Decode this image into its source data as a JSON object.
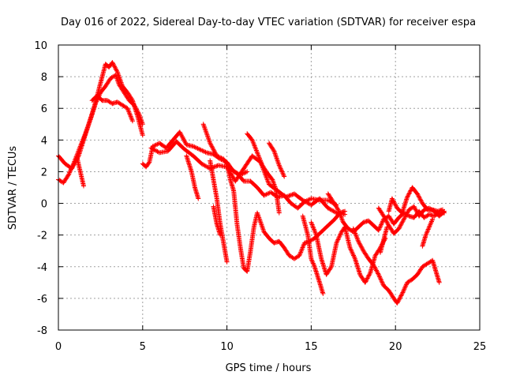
{
  "chart_data": {
    "type": "scatter",
    "title": "Day 016 of 2022, Sidereal Day-to-day VTEC variation (SDTVAR) for receiver espa",
    "xlabel": "GPS time / hours",
    "ylabel": "SDTVAR / TECUs",
    "xlim": [
      0,
      25
    ],
    "ylim": [
      -8,
      10
    ],
    "xticks": [
      0,
      5,
      10,
      15,
      20,
      25
    ],
    "yticks": [
      -8,
      -6,
      -4,
      -2,
      0,
      2,
      4,
      6,
      8,
      10
    ],
    "grid": true,
    "marker": "+",
    "series": [
      {
        "name": "SDTVAR",
        "color": "#ff0000",
        "traces": [
          [
            [
              0,
              3.0
            ],
            [
              0.4,
              2.5
            ],
            [
              0.8,
              2.2
            ],
            [
              1.2,
              3.0
            ],
            [
              1.5,
              4.0
            ],
            [
              1.8,
              5.0
            ],
            [
              2.1,
              6.0
            ],
            [
              2.4,
              7.2
            ],
            [
              2.6,
              8.0
            ],
            [
              2.8,
              8.8
            ],
            [
              3.0,
              8.6
            ],
            [
              3.2,
              8.9
            ],
            [
              3.5,
              8.3
            ],
            [
              3.8,
              7.4
            ],
            [
              4.1,
              7.0
            ],
            [
              4.4,
              6.5
            ],
            [
              4.7,
              5.5
            ],
            [
              5.0,
              4.3
            ]
          ],
          [
            [
              0,
              1.5
            ],
            [
              0.3,
              1.3
            ],
            [
              0.6,
              1.8
            ],
            [
              0.9,
              2.5
            ],
            [
              1.3,
              3.6
            ],
            [
              1.6,
              4.4
            ],
            [
              1.9,
              5.3
            ],
            [
              2.2,
              6.3
            ],
            [
              2.5,
              7.0
            ],
            [
              2.8,
              7.4
            ],
            [
              3.1,
              7.9
            ],
            [
              3.4,
              8.1
            ],
            [
              3.6,
              7.5
            ],
            [
              3.9,
              7.0
            ],
            [
              4.2,
              6.5
            ],
            [
              4.5,
              6.2
            ],
            [
              4.8,
              5.6
            ],
            [
              5.0,
              5.0
            ]
          ],
          [
            [
              1.1,
              2.9
            ],
            [
              1.3,
              2.0
            ],
            [
              1.5,
              1.1
            ]
          ],
          [
            [
              2.0,
              6.5
            ],
            [
              2.3,
              6.8
            ],
            [
              2.6,
              6.5
            ],
            [
              2.9,
              6.5
            ],
            [
              3.2,
              6.3
            ],
            [
              3.5,
              6.4
            ],
            [
              3.8,
              6.2
            ],
            [
              4.1,
              6.0
            ],
            [
              4.4,
              5.2
            ]
          ],
          [
            [
              5.0,
              2.5
            ],
            [
              5.2,
              2.3
            ],
            [
              5.4,
              2.6
            ],
            [
              5.6,
              3.6
            ],
            [
              6.0,
              3.8
            ],
            [
              6.4,
              3.5
            ],
            [
              6.8,
              4.0
            ],
            [
              7.2,
              4.5
            ],
            [
              7.6,
              3.7
            ],
            [
              8.0,
              3.6
            ],
            [
              8.4,
              3.4
            ],
            [
              8.8,
              3.2
            ],
            [
              9.2,
              3.1
            ],
            [
              9.6,
              2.8
            ],
            [
              10.0,
              2.6
            ],
            [
              10.4,
              2.0
            ],
            [
              10.8,
              1.8
            ],
            [
              11.2,
              2.0
            ]
          ],
          [
            [
              5.5,
              3.5
            ],
            [
              6.0,
              3.2
            ],
            [
              6.5,
              3.3
            ],
            [
              7.0,
              3.9
            ],
            [
              7.5,
              3.4
            ],
            [
              8.0,
              3.0
            ],
            [
              8.5,
              2.5
            ],
            [
              9.0,
              2.2
            ],
            [
              9.5,
              2.4
            ],
            [
              10.0,
              2.3
            ],
            [
              10.5,
              1.4
            ],
            [
              11.0,
              2.2
            ],
            [
              11.5,
              3.0
            ],
            [
              12.0,
              2.6
            ],
            [
              12.5,
              1.2
            ],
            [
              13.0,
              0.8
            ],
            [
              13.5,
              0.4
            ],
            [
              14.0,
              0.6
            ],
            [
              14.5,
              0.2
            ],
            [
              15.0,
              -0.1
            ],
            [
              15.5,
              0.3
            ],
            [
              16.0,
              -0.3
            ],
            [
              16.5,
              -0.6
            ],
            [
              17.0,
              -0.7
            ]
          ],
          [
            [
              7.6,
              3.0
            ],
            [
              7.9,
              2.0
            ],
            [
              8.1,
              1.0
            ],
            [
              8.3,
              0.3
            ]
          ],
          [
            [
              8.6,
              5.0
            ],
            [
              9.0,
              3.8
            ],
            [
              9.4,
              3.0
            ],
            [
              9.8,
              2.8
            ],
            [
              10.2,
              2.2
            ],
            [
              10.6,
              1.9
            ],
            [
              11.0,
              1.4
            ],
            [
              11.4,
              1.4
            ],
            [
              11.8,
              1.0
            ],
            [
              12.2,
              0.5
            ],
            [
              12.6,
              0.7
            ],
            [
              13.0,
              0.4
            ],
            [
              13.4,
              0.5
            ],
            [
              13.8,
              0.0
            ],
            [
              14.2,
              -0.3
            ],
            [
              14.6,
              0.1
            ],
            [
              15.0,
              0.3
            ],
            [
              15.5,
              0.2
            ],
            [
              16.0,
              0.2
            ],
            [
              16.5,
              -0.1
            ]
          ],
          [
            [
              9.0,
              2.7
            ],
            [
              9.2,
              1.5
            ],
            [
              9.4,
              0.3
            ],
            [
              9.6,
              -1.3
            ],
            [
              9.8,
              -2.5
            ],
            [
              10.0,
              -3.7
            ]
          ],
          [
            [
              9.2,
              -0.2
            ],
            [
              9.4,
              -1.3
            ],
            [
              9.6,
              -2.0
            ]
          ],
          [
            [
              10.0,
              2.5
            ],
            [
              10.2,
              1.5
            ],
            [
              10.4,
              0.8
            ],
            [
              10.6,
              -1.3
            ],
            [
              10.8,
              -2.8
            ],
            [
              11.0,
              -4.1
            ],
            [
              11.2,
              -4.3
            ],
            [
              11.4,
              -3.0
            ],
            [
              11.6,
              -1.5
            ],
            [
              11.8,
              -0.6
            ],
            [
              12.0,
              -1.2
            ],
            [
              12.2,
              -1.8
            ],
            [
              12.5,
              -2.2
            ],
            [
              12.8,
              -2.5
            ],
            [
              13.1,
              -2.4
            ],
            [
              13.4,
              -2.8
            ],
            [
              13.7,
              -3.3
            ],
            [
              14.0,
              -3.5
            ],
            [
              14.3,
              -3.3
            ],
            [
              14.6,
              -2.5
            ],
            [
              14.9,
              -2.4
            ],
            [
              15.2,
              -2.2
            ],
            [
              15.5,
              -1.9
            ],
            [
              15.8,
              -1.6
            ],
            [
              16.1,
              -1.3
            ],
            [
              16.4,
              -1.0
            ],
            [
              16.7,
              -0.6
            ],
            [
              17.0,
              -0.5
            ]
          ],
          [
            [
              11.2,
              4.4
            ],
            [
              11.5,
              4.0
            ],
            [
              11.8,
              3.2
            ],
            [
              12.1,
              2.4
            ],
            [
              12.4,
              1.9
            ],
            [
              12.7,
              1.5
            ],
            [
              12.9,
              0.9
            ],
            [
              13.1,
              -0.6
            ]
          ],
          [
            [
              12.5,
              3.8
            ],
            [
              12.8,
              3.3
            ],
            [
              13.1,
              2.4
            ],
            [
              13.4,
              1.7
            ]
          ],
          [
            [
              14.5,
              -0.8
            ],
            [
              14.8,
              -2.0
            ],
            [
              15.0,
              -3.5
            ],
            [
              15.2,
              -4.0
            ],
            [
              15.5,
              -5.0
            ],
            [
              15.7,
              -5.7
            ]
          ],
          [
            [
              15.0,
              -1.2
            ],
            [
              15.3,
              -2.0
            ],
            [
              15.6,
              -3.5
            ],
            [
              15.9,
              -4.5
            ],
            [
              16.2,
              -4.0
            ],
            [
              16.5,
              -2.5
            ],
            [
              16.8,
              -1.8
            ],
            [
              17.0,
              -1.5
            ],
            [
              17.3,
              -2.8
            ],
            [
              17.6,
              -3.5
            ],
            [
              17.9,
              -4.5
            ],
            [
              18.2,
              -5.0
            ],
            [
              18.5,
              -4.4
            ],
            [
              18.8,
              -3.3
            ],
            [
              19.1,
              -2.8
            ],
            [
              19.4,
              -2.2
            ]
          ],
          [
            [
              16.0,
              0.6
            ],
            [
              16.3,
              0.1
            ],
            [
              16.6,
              -0.4
            ],
            [
              16.9,
              -1.2
            ],
            [
              17.2,
              -1.6
            ],
            [
              17.5,
              -1.8
            ],
            [
              17.8,
              -1.5
            ],
            [
              18.1,
              -1.2
            ],
            [
              18.4,
              -1.1
            ],
            [
              18.7,
              -1.4
            ],
            [
              19.0,
              -1.7
            ],
            [
              19.3,
              -1.0
            ],
            [
              19.6,
              -0.8
            ],
            [
              19.9,
              -1.3
            ],
            [
              20.2,
              -0.9
            ],
            [
              20.5,
              -0.6
            ],
            [
              20.8,
              -0.8
            ],
            [
              21.1,
              -0.9
            ],
            [
              21.4,
              -0.5
            ],
            [
              21.7,
              -0.9
            ],
            [
              22.0,
              -0.7
            ],
            [
              22.3,
              -0.8
            ],
            [
              22.6,
              -0.6
            ],
            [
              22.9,
              -0.6
            ]
          ],
          [
            [
              17.5,
              -1.6
            ],
            [
              17.8,
              -2.4
            ],
            [
              18.1,
              -3.0
            ],
            [
              18.4,
              -3.5
            ],
            [
              18.7,
              -3.9
            ],
            [
              19.0,
              -4.5
            ],
            [
              19.3,
              -5.2
            ],
            [
              19.6,
              -5.5
            ],
            [
              19.9,
              -6.0
            ],
            [
              20.1,
              -6.3
            ],
            [
              20.4,
              -5.7
            ],
            [
              20.7,
              -5.0
            ],
            [
              21.0,
              -4.8
            ],
            [
              21.3,
              -4.5
            ],
            [
              21.6,
              -4.0
            ],
            [
              21.9,
              -3.8
            ],
            [
              22.2,
              -3.6
            ],
            [
              22.4,
              -4.3
            ],
            [
              22.6,
              -5.0
            ]
          ],
          [
            [
              19.6,
              -0.5
            ],
            [
              19.8,
              0.3
            ],
            [
              20.1,
              -0.3
            ],
            [
              20.4,
              -0.6
            ],
            [
              20.7,
              0.4
            ],
            [
              21.0,
              1.0
            ],
            [
              21.3,
              0.6
            ],
            [
              21.6,
              0.0
            ],
            [
              21.9,
              -0.4
            ],
            [
              22.2,
              -0.4
            ],
            [
              22.5,
              -0.5
            ],
            [
              22.8,
              -0.4
            ]
          ],
          [
            [
              19.0,
              -0.3
            ],
            [
              19.3,
              -0.8
            ],
            [
              19.6,
              -1.4
            ],
            [
              19.9,
              -1.9
            ],
            [
              20.2,
              -1.6
            ],
            [
              20.5,
              -1.0
            ],
            [
              20.8,
              -0.4
            ],
            [
              21.1,
              -0.2
            ],
            [
              21.4,
              -0.8
            ],
            [
              21.7,
              -0.4
            ],
            [
              22.0,
              -0.3
            ],
            [
              22.3,
              -0.5
            ],
            [
              22.6,
              -0.8
            ],
            [
              22.9,
              -0.5
            ]
          ],
          [
            [
              19.5,
              -1.5
            ],
            [
              19.3,
              -2.3
            ],
            [
              19.1,
              -3.1
            ]
          ],
          [
            [
              21.6,
              -2.7
            ],
            [
              21.8,
              -2.0
            ],
            [
              22.0,
              -1.5
            ],
            [
              22.2,
              -1.0
            ]
          ]
        ]
      }
    ]
  }
}
